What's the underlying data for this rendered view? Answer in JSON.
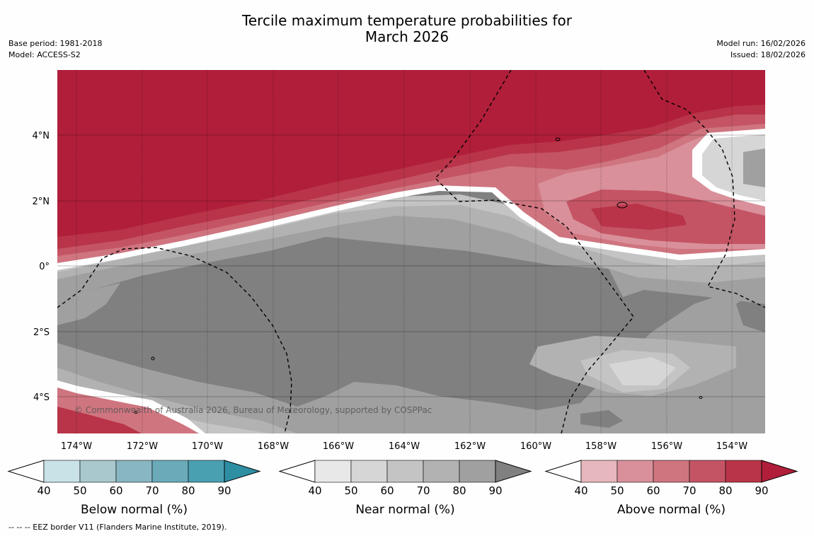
{
  "title_line1": "Tercile maximum temperature probabilities for",
  "title_line2": "March 2026",
  "base_period": "Base period: 1981-2018",
  "model": "Model: ACCESS-S2",
  "model_run": "Model run: 16/02/2026",
  "issued": "Issued: 18/02/2026",
  "copyright": "© Commonwealth of Australia 2026, Bureau of Meteorology, supported by COSPPac",
  "footnote": "--  --  -- EEZ border V11 (Flanders Marine Institute, 2019).",
  "x_ticks": [
    "174°W",
    "172°W",
    "170°W",
    "168°W",
    "166°W",
    "164°W",
    "162°W",
    "160°W",
    "158°W",
    "156°W",
    "154°W"
  ],
  "y_ticks": [
    "4°N",
    "2°N",
    "0°",
    "2°S",
    "4°S"
  ],
  "colorbars": [
    {
      "title": "Below normal (%)",
      "ticks": [
        "40",
        "50",
        "60",
        "70",
        "80",
        "90"
      ],
      "colors": [
        "#c9e2e8",
        "#a8c8ce",
        "#88b6c3",
        "#6aaab9",
        "#49a0b1",
        "#2e8fa3"
      ]
    },
    {
      "title": "Near normal (%)",
      "ticks": [
        "40",
        "50",
        "60",
        "70",
        "80",
        "90"
      ],
      "colors": [
        "#e8e8e8",
        "#d6d6d6",
        "#c4c4c4",
        "#b2b2b2",
        "#a0a0a0",
        "#808080"
      ]
    },
    {
      "title": "Above normal (%)",
      "ticks": [
        "40",
        "50",
        "60",
        "70",
        "80",
        "90"
      ],
      "colors": [
        "#e6b7bd",
        "#d9909a",
        "#cf7580",
        "#c45464",
        "#b93448",
        "#b01e3a"
      ]
    }
  ],
  "colors": {
    "above_90": "#b01e3a",
    "above_80": "#b93448",
    "above_70": "#c45464",
    "above_60": "#cf7580",
    "above_50": "#d9909a",
    "above_40": "#e6b7bd",
    "near_90": "#808080",
    "near_80": "#a0a0a0",
    "near_70": "#b2b2b2",
    "near_60": "#c4c4c4",
    "near_50": "#d6d6d6",
    "below_40": "#c9e2e8"
  }
}
